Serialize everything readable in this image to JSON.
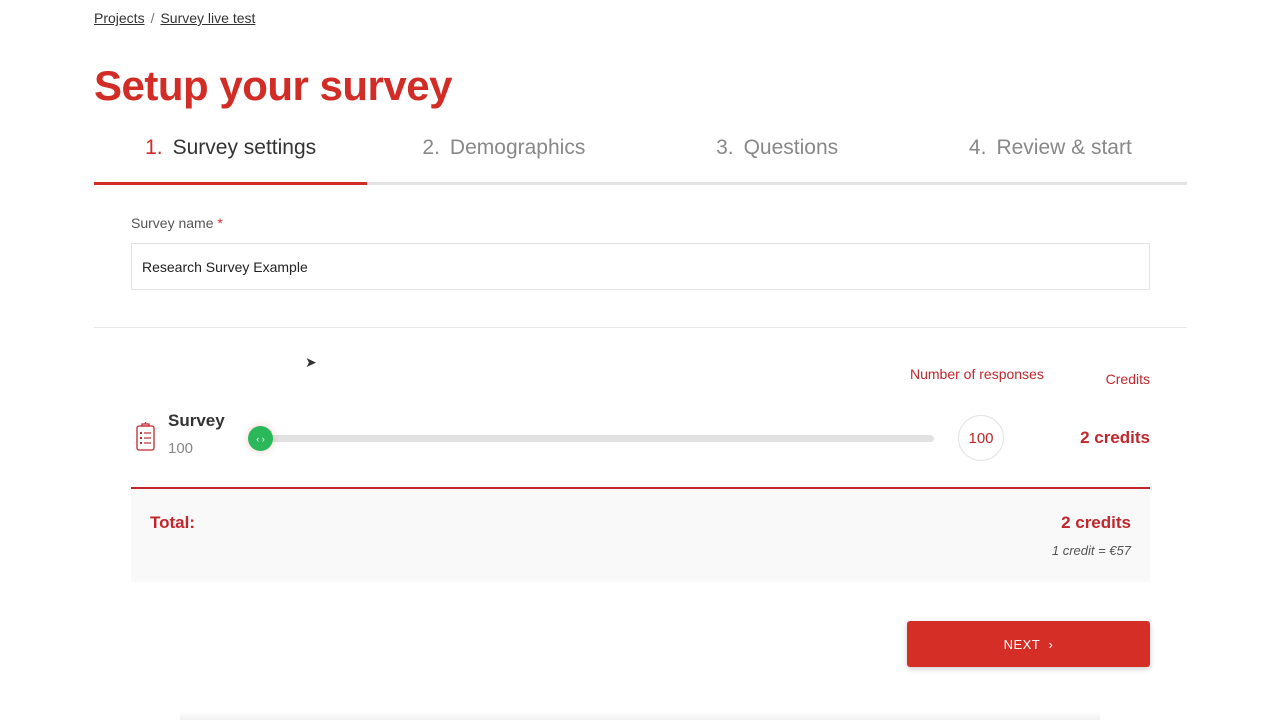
{
  "breadcrumb": {
    "items": [
      "Projects",
      "Survey live test"
    ],
    "separator": "/"
  },
  "page_title": "Setup your survey",
  "steps": [
    {
      "number": "1.",
      "label": "Survey settings",
      "active": true
    },
    {
      "number": "2.",
      "label": "Demographics",
      "active": false
    },
    {
      "number": "3.",
      "label": "Questions",
      "active": false
    },
    {
      "number": "4.",
      "label": "Review & start",
      "active": false
    }
  ],
  "form": {
    "survey_name_label": "Survey name",
    "required_mark": "*",
    "survey_name_value": "Research Survey Example"
  },
  "pricing": {
    "col_responses": "Number of responses",
    "col_credits": "Credits",
    "row": {
      "icon": "clipboard-list-icon",
      "name": "Survey",
      "responses_sub": "100",
      "slider_value": 100,
      "slider_fill_percent": 0,
      "value_display": "100",
      "credits": "2 credits"
    },
    "total_label": "Total:",
    "total_value": "2 credits",
    "rate": "1 credit = €57"
  },
  "next_label": "NEXT",
  "colors": {
    "brand": "#d22c26",
    "slider_thumb": "#2bb85b"
  }
}
